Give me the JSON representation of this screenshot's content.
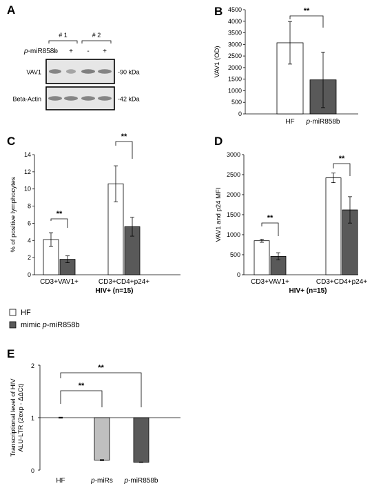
{
  "colors": {
    "hf": "#ffffff",
    "mimic": "#595959",
    "prmirs": "#bfbfbf",
    "axis": "#000000",
    "blotBg": "#e6e6e6",
    "band": "#7a7a7a"
  },
  "panels": {
    "A": "A",
    "B": "B",
    "C": "C",
    "D": "D",
    "E": "E"
  },
  "blot": {
    "groups": [
      "# 1",
      "# 2"
    ],
    "treatment_label": "p-miR858b",
    "treatment_italic": "p",
    "treatment_rest": "-miR858b",
    "lanes": [
      "-",
      "+",
      "-",
      "+"
    ],
    "rows": [
      {
        "protein": "VAV1",
        "size": "-90 kDa"
      },
      {
        "protein": "Beta-Actin",
        "size": "-42 kDa"
      }
    ]
  },
  "legend": {
    "items": [
      {
        "name": "HF",
        "color": "#ffffff"
      },
      {
        "name": "mimic p-miR858b",
        "prefix": "mimic ",
        "italic": "p",
        "rest": "-miR858b",
        "color": "#595959"
      }
    ]
  },
  "chart_data": [
    {
      "panel": "B",
      "type": "bar",
      "ylabel": "VAV1 (OD)",
      "ylim": [
        0,
        4500
      ],
      "yticks": [
        0,
        500,
        1000,
        1500,
        2000,
        2500,
        3000,
        3500,
        4000,
        4500
      ],
      "categories": [
        "HF",
        "p-miR858b"
      ],
      "cat_italic": [
        "",
        "p"
      ],
      "cat_rest": [
        "HF",
        "-miR858b"
      ],
      "values": [
        3070,
        1470
      ],
      "errors": [
        920,
        1200
      ],
      "significance": [
        {
          "label": "**",
          "between": [
            0,
            1
          ]
        }
      ]
    },
    {
      "panel": "C",
      "type": "bar",
      "ylabel": "% of positive lymphocytes",
      "xlabel": "HIV+ (n=15)",
      "ylim": [
        0,
        14
      ],
      "yticks": [
        0,
        2,
        4,
        6,
        8,
        10,
        12,
        14
      ],
      "categories": [
        "CD3+VAV1+",
        "CD3+CD4+p24+"
      ],
      "series": [
        {
          "name": "HF",
          "values": [
            4.1,
            10.6
          ],
          "errors": [
            0.8,
            2.1
          ]
        },
        {
          "name": "mimic p-miR858b",
          "values": [
            1.8,
            5.6
          ],
          "errors": [
            0.4,
            1.1
          ]
        }
      ],
      "significance": [
        {
          "label": "**",
          "category": 0
        },
        {
          "label": "**",
          "category": 1
        }
      ]
    },
    {
      "panel": "D",
      "type": "bar",
      "ylabel": "VAV1 and p24 MFI",
      "xlabel": "HIV+ (n=15)",
      "ylim": [
        0,
        3000
      ],
      "yticks": [
        0,
        500,
        1000,
        1500,
        2000,
        2500,
        3000
      ],
      "categories": [
        "CD3+VAV1+",
        "CD3+CD4+p24+"
      ],
      "series": [
        {
          "name": "HF",
          "values": [
            850,
            2420
          ],
          "errors": [
            40,
            120
          ]
        },
        {
          "name": "mimic p-miR858b",
          "values": [
            460,
            1620
          ],
          "errors": [
            90,
            330
          ]
        }
      ],
      "significance": [
        {
          "label": "**",
          "category": 0
        },
        {
          "label": "**",
          "category": 1
        }
      ]
    },
    {
      "panel": "E",
      "type": "bar",
      "ylabel": "Transcriptional level of HIV ALU-LTR (2exp - ΔΔCt)",
      "ylabel_lines": [
        "Transcriptional level of HIV",
        "ALU-LTR (2exp - ΔΔCt)"
      ],
      "ylim": [
        0,
        2
      ],
      "yticks": [
        0,
        1,
        2
      ],
      "categories": [
        "HF",
        "p-miRs",
        "p-miR858b"
      ],
      "cat_italic": [
        "",
        "p",
        "p"
      ],
      "cat_rest": [
        "HF",
        "-miRs",
        "-miR858b"
      ],
      "values": [
        1.0,
        0.19,
        0.15
      ],
      "errors": [
        0.01,
        0.01,
        0.005
      ],
      "significance": [
        {
          "label": "**",
          "between": [
            0,
            1
          ]
        },
        {
          "label": "**",
          "between": [
            0,
            2
          ]
        }
      ]
    }
  ]
}
